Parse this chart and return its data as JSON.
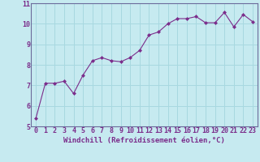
{
  "x": [
    0,
    1,
    2,
    3,
    4,
    5,
    6,
    7,
    8,
    9,
    10,
    11,
    12,
    13,
    14,
    15,
    16,
    17,
    18,
    19,
    20,
    21,
    22,
    23
  ],
  "y": [
    5.4,
    7.1,
    7.1,
    7.2,
    6.6,
    7.5,
    8.2,
    8.35,
    8.2,
    8.15,
    8.35,
    8.7,
    9.45,
    9.6,
    10.0,
    10.25,
    10.25,
    10.35,
    10.05,
    10.05,
    10.55,
    9.85,
    10.45,
    10.1
  ],
  "line_color": "#7b2d8b",
  "marker": "D",
  "marker_size": 2.0,
  "background_color": "#c6eaf0",
  "grid_color": "#a8d8e0",
  "xlabel": "Windchill (Refroidissement éolien,°C)",
  "xlabel_fontsize": 6.5,
  "tick_fontsize": 6.0,
  "xlim": [
    -0.5,
    23.5
  ],
  "ylim": [
    5.0,
    11.0
  ],
  "yticks": [
    5,
    6,
    7,
    8,
    9,
    10,
    11
  ],
  "xticks": [
    0,
    1,
    2,
    3,
    4,
    5,
    6,
    7,
    8,
    9,
    10,
    11,
    12,
    13,
    14,
    15,
    16,
    17,
    18,
    19,
    20,
    21,
    22,
    23
  ],
  "spine_color": "#6b6b9b"
}
